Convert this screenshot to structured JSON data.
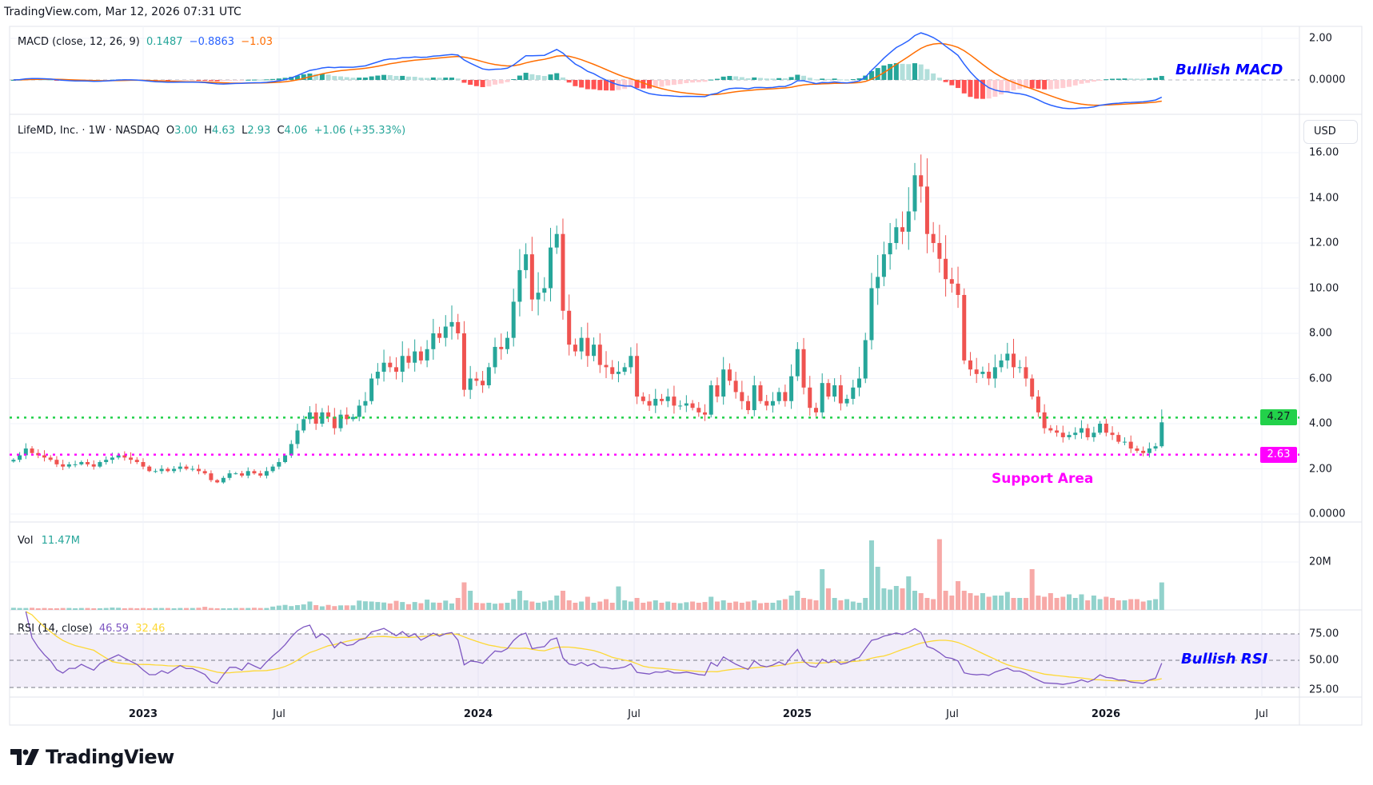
{
  "header": "TradingView.com, Mar 12, 2026 07:31 UTC",
  "macd_legend": {
    "title": "MACD (close, 12, 26, 9)",
    "hist": "0.1487",
    "macd": "−0.8863",
    "signal": "−1.03"
  },
  "price_legend": {
    "title": "LifeMD, Inc. · 1W · NASDAQ",
    "o_label": "O",
    "o": "3.00",
    "h_label": "H",
    "h": "4.63",
    "l_label": "L",
    "l": "2.93",
    "c_label": "C",
    "c": "4.06",
    "change": "+1.06 (+35.33%)"
  },
  "vol_legend": {
    "title": "Vol",
    "value": "11.47M"
  },
  "rsi_legend": {
    "title": "RSI (14, close)",
    "rsi": "46.59",
    "ma": "32.46"
  },
  "currency_button": "USD",
  "annotations": {
    "macd": "Bullish MACD",
    "support": "Support Area",
    "rsi": "Bullish RSI"
  },
  "price_lines": {
    "resistance": "4.27",
    "support": "2.63",
    "resistance_value": 4.27,
    "support_value": 2.63
  },
  "axes": {
    "macd_ticks": [
      "2.00",
      "0.0000"
    ],
    "price_ticks": [
      "16.00",
      "14.00",
      "12.00",
      "10.00",
      "8.00",
      "6.00",
      "4.00",
      "2.00",
      "0.0000"
    ],
    "volume_ticks": [
      "20M"
    ],
    "rsi_ticks": [
      "75.00",
      "50.00",
      "25.00"
    ],
    "time_labels": [
      "2023",
      "Jul",
      "2024",
      "Jul",
      "2025",
      "Jul",
      "2026",
      "Jul"
    ]
  },
  "logo_text": "TradingView",
  "colors": {
    "up": "#26a69a",
    "down": "#ef5350",
    "macd": "#2962ff",
    "signal": "#ff6d00",
    "rsi": "#7e57c2",
    "rsi_ma": "#fdd835",
    "resistance": "#22d14a",
    "support": "#ff00ff",
    "annotation_blue": "#0000ff"
  },
  "chart_data": {
    "type": "candlestick",
    "title": "LifeMD, Inc. 1W NASDAQ",
    "interval": "1W",
    "ylim": [
      0,
      16.5
    ],
    "last_bar": {
      "open": 3.0,
      "high": 4.63,
      "low": 2.93,
      "close": 4.06
    },
    "close": [
      2.4,
      2.6,
      2.9,
      2.7,
      2.6,
      2.5,
      2.4,
      2.2,
      2.1,
      2.2,
      2.2,
      2.3,
      2.2,
      2.1,
      2.3,
      2.4,
      2.5,
      2.6,
      2.5,
      2.4,
      2.3,
      2.1,
      1.9,
      1.9,
      2.0,
      1.9,
      2.0,
      2.1,
      2.0,
      2.0,
      1.9,
      1.8,
      1.5,
      1.4,
      1.6,
      1.8,
      1.8,
      1.7,
      1.9,
      1.8,
      1.7,
      1.9,
      2.1,
      2.3,
      2.6,
      3.1,
      3.7,
      4.2,
      4.5,
      4.0,
      4.5,
      4.3,
      3.8,
      4.4,
      4.2,
      4.3,
      4.8,
      5.0,
      6.0,
      6.3,
      6.7,
      6.5,
      6.3,
      7.0,
      6.7,
      7.2,
      6.8,
      7.3,
      8.0,
      7.8,
      8.3,
      8.5,
      8.0,
      5.5,
      6.0,
      5.9,
      5.7,
      6.5,
      7.4,
      7.3,
      7.8,
      9.4,
      10.8,
      11.5,
      9.5,
      9.8,
      10.0,
      11.8,
      12.4,
      9.0,
      7.5,
      7.2,
      7.8,
      7.0,
      7.5,
      6.6,
      6.5,
      6.2,
      6.3,
      6.5,
      7.0,
      5.2,
      5.0,
      4.8,
      5.1,
      5.0,
      5.2,
      4.8,
      4.8,
      4.9,
      4.7,
      4.5,
      4.4,
      5.7,
      5.2,
      6.4,
      5.9,
      5.4,
      5.0,
      4.6,
      5.7,
      5.0,
      4.8,
      5.0,
      5.4,
      5.0,
      6.1,
      7.3,
      5.6,
      4.7,
      4.5,
      5.8,
      5.2,
      5.7,
      4.9,
      5.1,
      5.6,
      6.0,
      7.7,
      10.0,
      10.5,
      11.5,
      12.0,
      12.7,
      12.5,
      13.4,
      15.0,
      14.5,
      12.4,
      12.0,
      11.3,
      10.4,
      10.2,
      9.7,
      6.8,
      6.4,
      6.2,
      6.3,
      6.0,
      6.5,
      6.8,
      7.1,
      6.5,
      6.5,
      6.0,
      5.2,
      4.5,
      3.8,
      3.7,
      3.6,
      3.4,
      3.5,
      3.6,
      3.8,
      3.4,
      3.6,
      4.0,
      3.6,
      3.5,
      3.2,
      3.2,
      2.9,
      2.8,
      2.7,
      2.9,
      3.0,
      4.06
    ],
    "volume_millions": [
      0.9,
      0.8,
      0.8,
      0.9,
      0.7,
      0.8,
      0.7,
      0.7,
      0.8,
      0.8,
      0.7,
      0.8,
      0.8,
      0.7,
      0.7,
      0.8,
      1.0,
      0.9,
      0.7,
      0.8,
      0.7,
      0.8,
      0.7,
      0.8,
      0.8,
      0.8,
      0.7,
      0.8,
      0.8,
      0.8,
      0.9,
      1.3,
      0.8,
      0.7,
      0.7,
      0.7,
      0.8,
      0.8,
      0.8,
      0.9,
      0.8,
      0.8,
      1.4,
      1.8,
      2.1,
      1.6,
      2.0,
      2.3,
      3.5,
      2.0,
      1.5,
      2.1,
      1.6,
      1.9,
      1.9,
      1.9,
      3.9,
      3.6,
      3.5,
      3.3,
      3.1,
      2.7,
      3.8,
      3.3,
      2.4,
      3.3,
      2.8,
      4.3,
      3.1,
      3.0,
      3.9,
      2.7,
      5.0,
      11.5,
      8.0,
      3.0,
      2.8,
      3.0,
      2.6,
      2.8,
      3.0,
      4.5,
      8.0,
      4.0,
      3.5,
      3.0,
      3.5,
      4.0,
      6.0,
      8.0,
      4.0,
      3.0,
      3.5,
      5.5,
      3.0,
      3.5,
      4.5,
      3.0,
      9.8,
      4.0,
      3.5,
      5.0,
      3.0,
      3.5,
      4.0,
      3.0,
      3.5,
      3.0,
      2.8,
      3.2,
      3.5,
      3.0,
      3.3,
      5.5,
      3.5,
      4.0,
      3.0,
      3.5,
      3.0,
      3.5,
      4.0,
      2.8,
      3.0,
      3.0,
      4.0,
      4.5,
      6.0,
      8.0,
      5.0,
      4.5,
      4.0,
      17.0,
      9.0,
      5.0,
      4.0,
      4.5,
      3.5,
      3.0,
      5.0,
      29.0,
      18.0,
      9.0,
      8.5,
      10.0,
      9.0,
      14.0,
      8.0,
      7.0,
      5.0,
      4.5,
      29.5,
      8.0,
      6.0,
      12.0,
      8.0,
      7.0,
      6.0,
      7.0,
      5.5,
      6.0,
      6.0,
      7.5,
      5.0,
      5.0,
      5.0,
      17.0,
      6.0,
      5.5,
      7.0,
      5.0,
      5.5,
      6.5,
      5.0,
      6.5,
      4.0,
      6.0,
      4.5,
      5.5,
      5.0,
      4.0,
      4.0,
      4.5,
      4.5,
      3.5,
      4.0,
      4.5,
      11.47
    ],
    "indicators": {
      "macd": [
        12,
        26,
        9
      ],
      "rsi": 14,
      "rsi_levels": [
        25,
        50,
        75
      ]
    }
  }
}
